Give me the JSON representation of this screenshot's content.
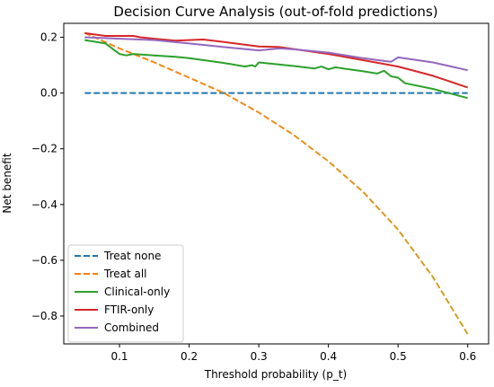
{
  "chart_data": {
    "type": "line",
    "title": "Decision Curve Analysis (out-of-fold predictions)",
    "xlabel": "Threshold probability (p_t)",
    "ylabel": "Net benefit",
    "xlim": [
      0.02,
      0.63
    ],
    "ylim": [
      -0.9,
      0.25
    ],
    "xticks": [
      0.1,
      0.2,
      0.3,
      0.4,
      0.5,
      0.6
    ],
    "yticks": [
      -0.8,
      -0.6,
      -0.4,
      -0.2,
      0.0,
      0.2
    ],
    "xtick_labels": [
      "0.1",
      "0.2",
      "0.3",
      "0.4",
      "0.5",
      "0.6"
    ],
    "ytick_labels": [
      "−0.8",
      "−0.6",
      "−0.4",
      "−0.2",
      "0.0",
      "0.2"
    ],
    "grid": false,
    "legend_position": "lower-left",
    "series": [
      {
        "name": "Treat none",
        "color": "#1f77b4",
        "dash": "dashed",
        "points": [
          [
            0.05,
            0.0
          ],
          [
            0.6,
            0.0
          ]
        ]
      },
      {
        "name": "Treat all",
        "color": "#d2a020",
        "color_start": "#ff7f0e",
        "dash": "dashed",
        "points": [
          [
            0.05,
            0.216
          ],
          [
            0.1,
            0.16
          ],
          [
            0.15,
            0.11
          ],
          [
            0.2,
            0.055
          ],
          [
            0.25,
            0.0
          ],
          [
            0.3,
            -0.07
          ],
          [
            0.35,
            -0.15
          ],
          [
            0.4,
            -0.245
          ],
          [
            0.45,
            -0.355
          ],
          [
            0.5,
            -0.49
          ],
          [
            0.55,
            -0.66
          ],
          [
            0.6,
            -0.865
          ]
        ]
      },
      {
        "name": "Clinical-only",
        "color": "#2ca02c",
        "dash": "solid",
        "points": [
          [
            0.05,
            0.19
          ],
          [
            0.08,
            0.178
          ],
          [
            0.1,
            0.14
          ],
          [
            0.11,
            0.135
          ],
          [
            0.12,
            0.14
          ],
          [
            0.15,
            0.135
          ],
          [
            0.18,
            0.13
          ],
          [
            0.2,
            0.125
          ],
          [
            0.25,
            0.108
          ],
          [
            0.28,
            0.095
          ],
          [
            0.29,
            0.1
          ],
          [
            0.295,
            0.095
          ],
          [
            0.3,
            0.11
          ],
          [
            0.35,
            0.097
          ],
          [
            0.38,
            0.088
          ],
          [
            0.39,
            0.095
          ],
          [
            0.4,
            0.085
          ],
          [
            0.41,
            0.092
          ],
          [
            0.45,
            0.078
          ],
          [
            0.47,
            0.07
          ],
          [
            0.48,
            0.08
          ],
          [
            0.49,
            0.06
          ],
          [
            0.5,
            0.055
          ],
          [
            0.51,
            0.035
          ],
          [
            0.55,
            0.015
          ],
          [
            0.6,
            -0.018
          ]
        ]
      },
      {
        "name": "FTIR-only",
        "color": "#d62728",
        "dash": "solid",
        "points": [
          [
            0.05,
            0.215
          ],
          [
            0.08,
            0.205
          ],
          [
            0.12,
            0.205
          ],
          [
            0.13,
            0.2
          ],
          [
            0.15,
            0.195
          ],
          [
            0.18,
            0.188
          ],
          [
            0.2,
            0.19
          ],
          [
            0.22,
            0.192
          ],
          [
            0.25,
            0.183
          ],
          [
            0.3,
            0.167
          ],
          [
            0.33,
            0.165
          ],
          [
            0.35,
            0.158
          ],
          [
            0.4,
            0.14
          ],
          [
            0.45,
            0.118
          ],
          [
            0.5,
            0.095
          ],
          [
            0.55,
            0.062
          ],
          [
            0.6,
            0.02
          ]
        ]
      },
      {
        "name": "Combined",
        "color": "#9467bd",
        "dash": "solid",
        "points": [
          [
            0.05,
            0.2
          ],
          [
            0.1,
            0.195
          ],
          [
            0.15,
            0.19
          ],
          [
            0.2,
            0.178
          ],
          [
            0.25,
            0.165
          ],
          [
            0.28,
            0.158
          ],
          [
            0.3,
            0.153
          ],
          [
            0.33,
            0.16
          ],
          [
            0.35,
            0.157
          ],
          [
            0.4,
            0.145
          ],
          [
            0.45,
            0.125
          ],
          [
            0.48,
            0.115
          ],
          [
            0.49,
            0.112
          ],
          [
            0.5,
            0.128
          ],
          [
            0.55,
            0.11
          ],
          [
            0.6,
            0.082
          ]
        ]
      }
    ]
  }
}
